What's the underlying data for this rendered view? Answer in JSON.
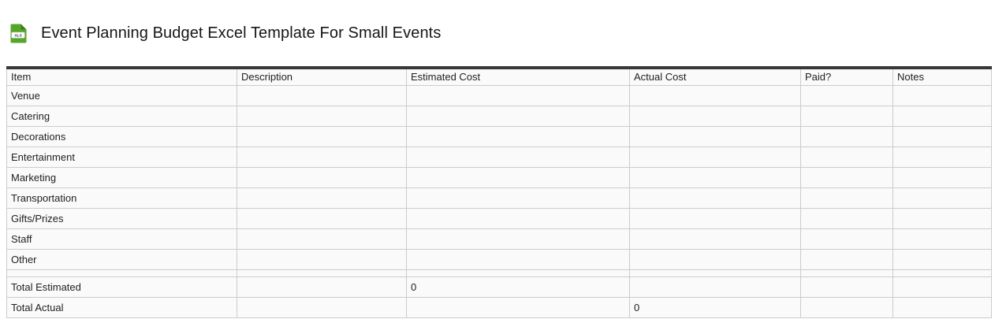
{
  "header": {
    "icon": "xls-file-icon",
    "icon_label": "XLS",
    "title": "Event Planning Budget Excel Template For Small Events"
  },
  "table": {
    "columns": [
      {
        "label": "Item"
      },
      {
        "label": "Description"
      },
      {
        "label": "Estimated Cost"
      },
      {
        "label": "Actual Cost"
      },
      {
        "label": "Paid?"
      },
      {
        "label": "Notes"
      }
    ],
    "rows": [
      [
        "Venue",
        "",
        "",
        "",
        "",
        ""
      ],
      [
        "Catering",
        "",
        "",
        "",
        "",
        ""
      ],
      [
        "Decorations",
        "",
        "",
        "",
        "",
        ""
      ],
      [
        "Entertainment",
        "",
        "",
        "",
        "",
        ""
      ],
      [
        "Marketing",
        "",
        "",
        "",
        "",
        ""
      ],
      [
        "Transportation",
        "",
        "",
        "",
        "",
        ""
      ],
      [
        "Gifts/Prizes",
        "",
        "",
        "",
        "",
        ""
      ],
      [
        "Staff",
        "",
        "",
        "",
        "",
        ""
      ],
      [
        "Other",
        "",
        "",
        "",
        "",
        ""
      ]
    ],
    "total_rows": [
      [
        "Total Estimated",
        "",
        "0",
        "",
        "",
        ""
      ],
      [
        "Total Actual",
        "",
        "",
        "0",
        "",
        ""
      ]
    ]
  },
  "colors": {
    "accent_green": "#57a62c",
    "accent_green_dark": "#3f7d1d",
    "table_top_border": "#383838",
    "cell_border": "#cccccc",
    "cell_background": "#fafafa",
    "text": "#212121"
  }
}
